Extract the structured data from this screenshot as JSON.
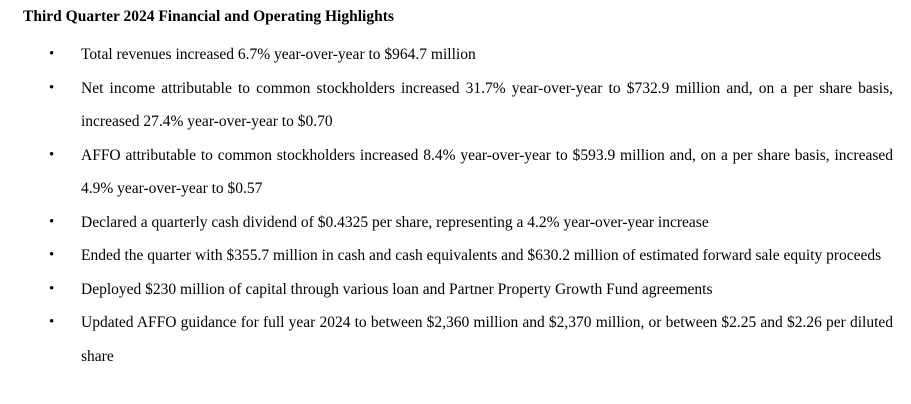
{
  "heading": "Third Quarter 2024 Financial and Operating Highlights",
  "bullet_glyph": "•",
  "items": [
    "Total revenues increased 6.7% year-over-year to $964.7 million",
    "Net income attributable to common stockholders increased 31.7% year-over-year to $732.9 million and, on a per share basis, increased 27.4% year-over-year to $0.70",
    "AFFO attributable to common stockholders increased 8.4% year-over-year to $593.9 million and, on a per share basis, increased 4.9% year-over-year to $0.57",
    "Declared a quarterly cash dividend of $0.4325 per share, representing a 4.2% year-over-year increase",
    "Ended the quarter with $355.7 million in cash and cash equivalents and $630.2 million of estimated forward sale equity proceeds",
    "Deployed $230 million of capital through various loan and Partner Property Growth Fund agreements",
    "Updated AFFO guidance for full year 2024 to between $2,360 million and $2,370 million, or between $2.25 and $2.26 per diluted share"
  ]
}
